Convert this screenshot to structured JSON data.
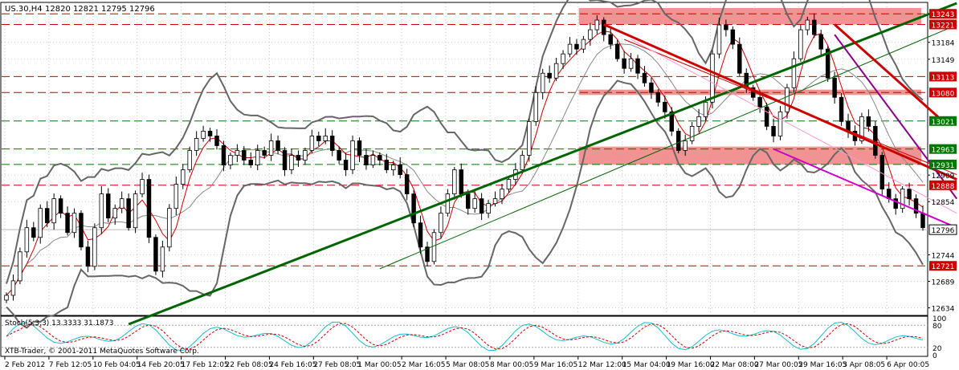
{
  "window": {
    "symbol_header": "US.30,H4",
    "ohlc": "12820 12821 12795 12796",
    "copyright": "XTB-Trader, © 2001-2011 MetaQuotes Software Corp."
  },
  "indicator": {
    "label": "Stoch(5,3,3) 13.3333 31.1873",
    "axis_labels": [
      "100",
      "80",
      "20",
      "0"
    ],
    "main_color": "#17becf",
    "signal_color": "#cc0000"
  },
  "chart_data": {
    "type": "candlestick",
    "title": "",
    "ylim": [
      12620,
      13265
    ],
    "y_ticks": [
      "13184",
      "13149",
      "12909",
      "12854",
      "12744",
      "12689",
      "12634"
    ],
    "x_labels": [
      "2 Feb 2012",
      "7 Feb 12:05",
      "10 Feb 04:05",
      "14 Feb 20:05",
      "17 Feb 12:05",
      "22 Feb 08:05",
      "24 Feb 16:05",
      "27 Feb 08:05",
      "1 Mar 00:05",
      "2 Mar 16:05",
      "5 Mar 08:05",
      "8 Mar 00:05",
      "9 Mar 16:05",
      "12 Mar 12:00",
      "15 Mar 04:00",
      "19 Mar 16:00",
      "22 Mar 08:00",
      "27 Mar 00:05",
      "29 Mar 16:05",
      "3 Apr 08:05",
      "6 Apr 00:05"
    ],
    "horizontal_levels": [
      {
        "value": 13243,
        "label": "13243",
        "color": "#cc0000"
      },
      {
        "value": 13221,
        "label": "13221",
        "color": "#cc0000"
      },
      {
        "value": 13113,
        "label": "13113",
        "color": "#cc0000"
      },
      {
        "value": 13080,
        "label": "13080",
        "color": "#cc0000"
      },
      {
        "value": 13021,
        "label": "13021",
        "color": "#007700"
      },
      {
        "value": 12963,
        "label": "12963",
        "color": "#007700"
      },
      {
        "value": 12931,
        "label": "12931",
        "color": "#007700"
      },
      {
        "value": 12888,
        "label": "12888",
        "color": "#cc0000"
      },
      {
        "value": 12721,
        "label": "12721",
        "color": "#cc0000"
      }
    ],
    "current_price": {
      "value": 12796,
      "label": "12796"
    },
    "zones": [
      {
        "from": 13221,
        "to": 13255,
        "color": "#f08080"
      },
      {
        "from": 12931,
        "to": 12968,
        "color": "#f08080"
      },
      {
        "from": 13075,
        "to": 13086,
        "color": "#f08080"
      }
    ],
    "close_path": [
      12660,
      12690,
      12750,
      12800,
      12780,
      12840,
      12810,
      12860,
      12830,
      12790,
      12830,
      12760,
      12720,
      12800,
      12870,
      12820,
      12840,
      12860,
      12800,
      12870,
      12900,
      12780,
      12710,
      12760,
      12840,
      12890,
      12920,
      12960,
      12985,
      13000,
      12990,
      12970,
      12930,
      12950,
      12960,
      12940,
      12930,
      12960,
      12950,
      12980,
      12960,
      12920,
      12950,
      12940,
      12960,
      12990,
      12980,
      12990,
      12960,
      12940,
      12920,
      12980,
      12950,
      12930,
      12950,
      12940,
      12920,
      12930,
      12910,
      12870,
      12810,
      12760,
      12730,
      12790,
      12830,
      12870,
      12920,
      12870,
      12840,
      12860,
      12830,
      12850,
      12860,
      12880,
      12900,
      12920,
      12950,
      13020,
      13080,
      13120,
      13110,
      13140,
      13160,
      13180,
      13170,
      13190,
      13210,
      13230,
      13200,
      13180,
      13150,
      13130,
      13150,
      13120,
      13100,
      13080,
      13060,
      13040,
      13000,
      12960,
      12980,
      13010,
      13030,
      13060,
      13160,
      13220,
      13210,
      13180,
      13120,
      13090,
      13070,
      13050,
      13010,
      12990,
      13040,
      13090,
      13150,
      13210,
      13230,
      13200,
      13170,
      13110,
      13070,
      13020,
      13000,
      12980,
      13030,
      13010,
      12950,
      12880,
      12860,
      12840,
      12880,
      12860,
      12830,
      12800
    ],
    "trendlines": [
      {
        "from": [
          18,
          12600
        ],
        "to": [
          140,
          13265
        ],
        "color": "#006400",
        "width": "thick"
      },
      {
        "from": [
          55,
          12715
        ],
        "to": [
          140,
          13220
        ],
        "color": "#006400",
        "width": "thin"
      },
      {
        "from": [
          88,
          13221
        ],
        "to": [
          140,
          12900
        ],
        "color": "#cc0000",
        "width": "thick"
      },
      {
        "from": [
          91,
          13190
        ],
        "to": [
          140,
          12910
        ],
        "color": "#cc0000",
        "width": "thin"
      },
      {
        "from": [
          122,
          13221
        ],
        "to": [
          138,
          13020
        ],
        "color": "#cc0000",
        "width": "thick"
      },
      {
        "from": [
          122,
          13200
        ],
        "to": [
          140,
          12860
        ],
        "color": "#8b008b",
        "width": "medium"
      },
      {
        "from": [
          113,
          12963
        ],
        "to": [
          140,
          12800
        ],
        "color": "#cc00cc",
        "width": "medium"
      },
      {
        "from": [
          92,
          13190
        ],
        "to": [
          140,
          12830
        ],
        "color": "#ff99cc",
        "width": "thin"
      }
    ],
    "indicators": [
      "Bollinger Bands",
      "Moving Average",
      "Stochastic(5,3,3)"
    ]
  }
}
